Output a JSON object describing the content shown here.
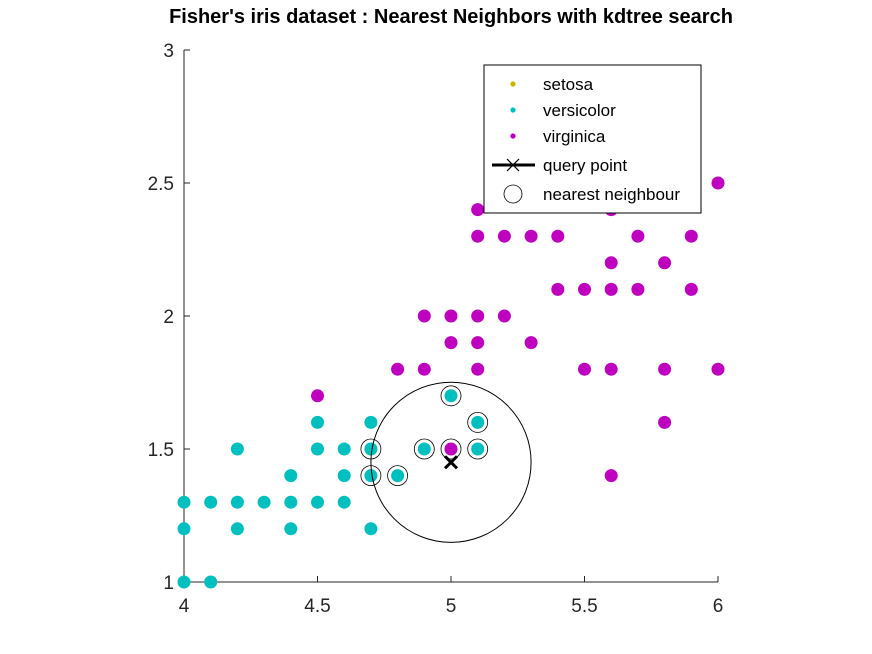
{
  "chart_data": {
    "type": "scatter",
    "title": "Fisher's iris dataset : Nearest Neighbors with kdtree search",
    "xlabel": "",
    "ylabel": "",
    "xlim": [
      4,
      6
    ],
    "ylim": [
      1,
      3
    ],
    "x_ticks": [
      "4",
      "4.5",
      "5",
      "5.5",
      "6"
    ],
    "y_ticks": [
      "1",
      "1.5",
      "2",
      "2.5",
      "3"
    ],
    "grid": false,
    "legend_position": "top-right",
    "legend": [
      {
        "label": "setosa",
        "kind": "dot",
        "color": "#c8b400"
      },
      {
        "label": "versicolor",
        "kind": "dot",
        "color": "#00bfbf"
      },
      {
        "label": "virginica",
        "kind": "dot",
        "color": "#bf00bf"
      },
      {
        "label": "query point",
        "kind": "cross",
        "color": "#000000"
      },
      {
        "label": "nearest neighbour",
        "kind": "ring",
        "color": "#000000"
      }
    ],
    "series": [
      {
        "name": "setosa",
        "color": "#c8b400",
        "points": []
      },
      {
        "name": "versicolor",
        "color": "#00bfbf",
        "points": [
          [
            4.0,
            1.3
          ],
          [
            4.1,
            1.3
          ],
          [
            4.2,
            1.3
          ],
          [
            4.3,
            1.3
          ],
          [
            4.4,
            1.3
          ],
          [
            4.5,
            1.3
          ],
          [
            4.6,
            1.3
          ],
          [
            4.0,
            1.2
          ],
          [
            4.2,
            1.2
          ],
          [
            4.4,
            1.2
          ],
          [
            4.7,
            1.2
          ],
          [
            4.0,
            1.0
          ],
          [
            4.1,
            1.0
          ],
          [
            4.2,
            1.5
          ],
          [
            4.5,
            1.5
          ],
          [
            4.6,
            1.5
          ],
          [
            4.7,
            1.5
          ],
          [
            4.9,
            1.5
          ],
          [
            5.1,
            1.5
          ],
          [
            4.4,
            1.4
          ],
          [
            4.6,
            1.4
          ],
          [
            4.7,
            1.4
          ],
          [
            4.8,
            1.4
          ],
          [
            4.5,
            1.6
          ],
          [
            4.7,
            1.6
          ],
          [
            5.1,
            1.6
          ],
          [
            5.0,
            1.7
          ]
        ]
      },
      {
        "name": "virginica",
        "color": "#bf00bf",
        "points": [
          [
            4.5,
            1.7
          ],
          [
            4.8,
            1.8
          ],
          [
            4.9,
            1.8
          ],
          [
            5.1,
            1.8
          ],
          [
            5.5,
            1.8
          ],
          [
            5.6,
            1.8
          ],
          [
            5.8,
            1.8
          ],
          [
            6.0,
            1.8
          ],
          [
            5.0,
            1.9
          ],
          [
            5.1,
            1.9
          ],
          [
            5.3,
            1.9
          ],
          [
            4.9,
            2.0
          ],
          [
            5.0,
            2.0
          ],
          [
            5.1,
            2.0
          ],
          [
            5.2,
            2.0
          ],
          [
            5.4,
            2.1
          ],
          [
            5.5,
            2.1
          ],
          [
            5.6,
            2.1
          ],
          [
            5.7,
            2.1
          ],
          [
            5.9,
            2.1
          ],
          [
            5.6,
            2.2
          ],
          [
            5.8,
            2.2
          ],
          [
            5.1,
            2.3
          ],
          [
            5.2,
            2.3
          ],
          [
            5.3,
            2.3
          ],
          [
            5.4,
            2.3
          ],
          [
            5.7,
            2.3
          ],
          [
            5.9,
            2.3
          ],
          [
            5.1,
            2.4
          ],
          [
            5.6,
            2.4
          ],
          [
            6.0,
            2.5
          ],
          [
            5.8,
            1.6
          ],
          [
            5.6,
            1.4
          ],
          [
            5.0,
            1.5
          ]
        ]
      }
    ],
    "query_point": [
      5.0,
      1.45
    ],
    "nearest_neighbours": [
      [
        4.7,
        1.5
      ],
      [
        4.7,
        1.4
      ],
      [
        4.8,
        1.4
      ],
      [
        4.9,
        1.5
      ],
      [
        5.0,
        1.5
      ],
      [
        5.0,
        1.7
      ],
      [
        5.1,
        1.5
      ],
      [
        5.1,
        1.6
      ]
    ],
    "search_radius": 0.3
  }
}
